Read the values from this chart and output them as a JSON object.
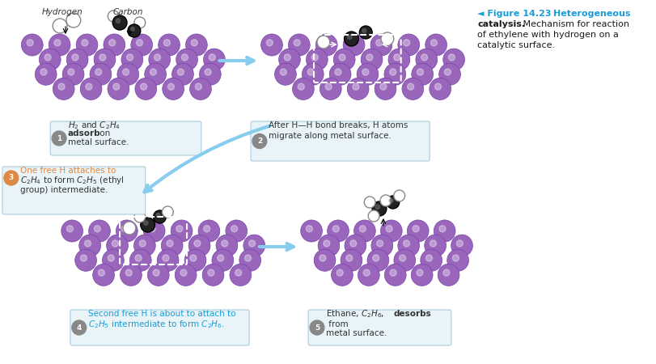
{
  "title_arrow": "◄ Figure 14.23",
  "title_bold": "Heterogeneous\ncatalysis.",
  "title_normal": " Mechanism for reaction\nof ethylene with hydrogen on a\ncatalytic surface.",
  "title_color": "#1a9cd8",
  "title_bold_color": "#1a1a1a",
  "background_color": "#ffffff",
  "purple_color": "#9966bb",
  "purple_dark": "#7744aa",
  "step1_label": "H₂ and C₂H₄ adsorb on\nmetal surface.",
  "step2_label": "After H—H bond breaks, H atoms\nmigrate along metal surface.",
  "step3_label": "One free H attaches to\nC₂H₄ to form C₂H₅ (ethyl\ngroup) intermediate.",
  "step4_label": "Second free H is about to attach to\nC₂H₅ intermediate to form C₂H₆.",
  "step5_label": "Ethane, C₂H₆, desorbs from\nmetal surface.",
  "step_circle_color": "#aaaaaa",
  "step_text_color": "#555555",
  "step3_circle_color": "#dd8844",
  "label_box_color": "#e8f4f8",
  "label_box_edge": "#aaccdd",
  "arrow_color": "#88ccee",
  "hydrogen_label": "Hydrogen",
  "carbon_label": "Carbon"
}
